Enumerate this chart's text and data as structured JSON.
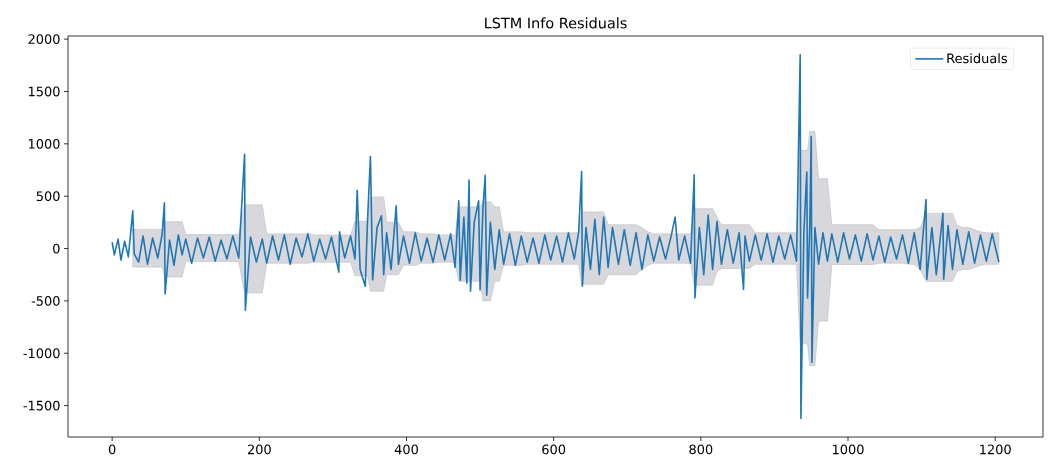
{
  "chart_data": {
    "type": "line",
    "title": "LSTM Info Residuals",
    "x": [
      0,
      3,
      8,
      12,
      17,
      22,
      28,
      30,
      36,
      42,
      48,
      55,
      62,
      68,
      71,
      72,
      78,
      84,
      90,
      95,
      100,
      108,
      116,
      124,
      132,
      140,
      148,
      156,
      164,
      172,
      180,
      181,
      188,
      196,
      204,
      210,
      218,
      226,
      234,
      242,
      250,
      258,
      266,
      274,
      282,
      290,
      298,
      308,
      309,
      316,
      324,
      330,
      333,
      337,
      344,
      347,
      351,
      354,
      360,
      366,
      369,
      373,
      379,
      386,
      389,
      396,
      404,
      412,
      420,
      428,
      436,
      444,
      452,
      460,
      466,
      471,
      473,
      478,
      482,
      485,
      487,
      492,
      498,
      500,
      504,
      507,
      509,
      514,
      520,
      526,
      532,
      540,
      548,
      556,
      564,
      572,
      580,
      588,
      596,
      604,
      612,
      620,
      628,
      634,
      638,
      639,
      644,
      650,
      656,
      662,
      668,
      674,
      680,
      688,
      696,
      704,
      712,
      720,
      728,
      736,
      744,
      752,
      760,
      765,
      770,
      778,
      786,
      791,
      792,
      798,
      804,
      810,
      816,
      822,
      828,
      836,
      844,
      852,
      858,
      860,
      866,
      874,
      882,
      890,
      898,
      906,
      914,
      922,
      930,
      935,
      936,
      940,
      944,
      945,
      948,
      950,
      951,
      955,
      960,
      966,
      972,
      978,
      986,
      994,
      1002,
      1010,
      1018,
      1026,
      1034,
      1042,
      1050,
      1058,
      1066,
      1074,
      1082,
      1090,
      1098,
      1106,
      1107,
      1114,
      1120,
      1129,
      1130,
      1136,
      1142,
      1148,
      1156,
      1164,
      1172,
      1180,
      1188,
      1196,
      1205
    ],
    "series": [
      {
        "name": "Residuals",
        "color": "#1f77b4",
        "values": [
          60,
          -60,
          90,
          -110,
          70,
          -80,
          360,
          -50,
          -130,
          120,
          -150,
          100,
          -90,
          140,
          436,
          -433,
          80,
          -160,
          130,
          -60,
          90,
          -140,
          100,
          -90,
          110,
          -120,
          80,
          -100,
          120,
          -90,
          900,
          -590,
          110,
          -130,
          90,
          -140,
          120,
          -110,
          130,
          -150,
          100,
          -80,
          140,
          -120,
          90,
          -100,
          110,
          -225,
          160,
          -90,
          120,
          -100,
          556,
          -200,
          -360,
          260,
          879,
          -300,
          200,
          313,
          -250,
          150,
          -200,
          408,
          -150,
          120,
          -140,
          150,
          -120,
          100,
          -130,
          130,
          -110,
          140,
          -180,
          455,
          -303,
          300,
          -330,
          654,
          -408,
          250,
          455,
          -395,
          400,
          700,
          -445,
          250,
          -200,
          180,
          -150,
          140,
          -160,
          120,
          -130,
          100,
          -140,
          130,
          -110,
          120,
          -130,
          150,
          -100,
          160,
          736,
          -360,
          200,
          -200,
          280,
          -250,
          300,
          -180,
          200,
          -150,
          180,
          -160,
          150,
          -200,
          130,
          -120,
          110,
          -100,
          130,
          300,
          -110,
          120,
          -140,
          704,
          -471,
          200,
          -250,
          320,
          -200,
          260,
          -150,
          180,
          -140,
          150,
          -390,
          120,
          -120,
          130,
          -110,
          140,
          -130,
          120,
          -100,
          130,
          -120,
          1851,
          -1624,
          150,
          730,
          -471,
          200,
          1070,
          -1087,
          200,
          -150,
          150,
          -120,
          140,
          -130,
          150,
          -100,
          130,
          -120,
          140,
          -110,
          120,
          -130,
          110,
          -100,
          130,
          -140,
          150,
          -200,
          468,
          -294,
          200,
          -250,
          337,
          -294,
          220,
          -200,
          180,
          -150,
          160,
          -140,
          130,
          -120,
          140,
          -130
        ],
        "lower": [
          null,
          null,
          null,
          null,
          null,
          null,
          -177,
          -177,
          -177,
          -177,
          -177,
          -177,
          -177,
          -177,
          -272,
          -272,
          -272,
          -272,
          -272,
          -272,
          -123,
          -123,
          -123,
          -123,
          -123,
          -123,
          -123,
          -123,
          -123,
          -123,
          -424,
          -424,
          -424,
          -424,
          -424,
          -140,
          -140,
          -140,
          -140,
          -140,
          -140,
          -140,
          -140,
          -130,
          -130,
          -130,
          -130,
          -130,
          -130,
          -130,
          -130,
          -260,
          -260,
          -260,
          -260,
          -260,
          -408,
          -408,
          -408,
          -408,
          -408,
          -250,
          -250,
          -250,
          -250,
          -160,
          -160,
          -160,
          -140,
          -140,
          -140,
          -130,
          -130,
          -130,
          -130,
          -313,
          -313,
          -313,
          -313,
          -313,
          -313,
          -313,
          -313,
          -313,
          -500,
          -500,
          -500,
          -500,
          -313,
          -313,
          -160,
          -160,
          -160,
          -160,
          -150,
          -150,
          -150,
          -150,
          -150,
          -150,
          -150,
          -150,
          -150,
          -150,
          -340,
          -340,
          -340,
          -340,
          -340,
          -340,
          -340,
          -250,
          -250,
          -250,
          -250,
          -250,
          -250,
          -200,
          -160,
          -140,
          -140,
          -140,
          -140,
          -140,
          -140,
          -140,
          -140,
          -350,
          -350,
          -350,
          -350,
          -350,
          -350,
          -220,
          -190,
          -190,
          -190,
          -190,
          -190,
          -190,
          -190,
          -150,
          -150,
          -150,
          -150,
          -150,
          -150,
          -150,
          -150,
          -910,
          -910,
          -910,
          -910,
          -910,
          -1120,
          -1120,
          -1120,
          -1120,
          -692,
          -692,
          -692,
          -152,
          -152,
          -152,
          -152,
          -152,
          -152,
          -152,
          -152,
          -140,
          -140,
          -140,
          -140,
          -140,
          -150,
          -150,
          -200,
          -313,
          -313,
          -313,
          -313,
          -313,
          -313,
          -313,
          -313,
          -220,
          -200,
          -200,
          -180,
          -160,
          -150,
          -150,
          -150
        ],
        "upper": [
          null,
          null,
          null,
          null,
          null,
          null,
          183,
          183,
          183,
          183,
          183,
          183,
          183,
          183,
          256,
          256,
          256,
          256,
          256,
          256,
          133,
          133,
          133,
          133,
          133,
          133,
          133,
          133,
          133,
          133,
          417,
          417,
          417,
          417,
          417,
          140,
          140,
          140,
          140,
          140,
          140,
          140,
          140,
          130,
          130,
          130,
          130,
          130,
          130,
          130,
          130,
          260,
          260,
          260,
          260,
          260,
          493,
          493,
          493,
          493,
          493,
          250,
          250,
          250,
          250,
          160,
          160,
          160,
          140,
          140,
          140,
          130,
          130,
          130,
          130,
          398,
          398,
          398,
          398,
          398,
          398,
          398,
          398,
          398,
          446,
          446,
          446,
          446,
          398,
          398,
          160,
          160,
          160,
          160,
          150,
          150,
          150,
          150,
          150,
          150,
          150,
          150,
          150,
          150,
          350,
          350,
          350,
          350,
          350,
          350,
          350,
          227,
          227,
          227,
          227,
          227,
          227,
          200,
          160,
          140,
          140,
          140,
          140,
          140,
          140,
          140,
          140,
          380,
          380,
          380,
          380,
          380,
          380,
          300,
          227,
          227,
          227,
          227,
          227,
          227,
          227,
          150,
          150,
          150,
          150,
          150,
          150,
          150,
          150,
          938,
          938,
          938,
          938,
          938,
          1118,
          1118,
          1118,
          1118,
          667,
          667,
          667,
          227,
          227,
          227,
          227,
          227,
          227,
          227,
          227,
          180,
          180,
          180,
          180,
          180,
          180,
          180,
          200,
          335,
          335,
          335,
          335,
          335,
          335,
          335,
          335,
          220,
          200,
          200,
          180,
          160,
          150,
          150,
          150
        ]
      }
    ],
    "xlim": [
      -60,
      1265
    ],
    "ylim": [
      -1800,
      2030
    ],
    "xticks": [
      0,
      200,
      400,
      600,
      800,
      1000,
      1200
    ],
    "yticks": [
      -1500,
      -1000,
      -500,
      0,
      500,
      1000,
      1500,
      2000
    ],
    "legend": "top right",
    "marker": "none",
    "line_style": "solid"
  }
}
